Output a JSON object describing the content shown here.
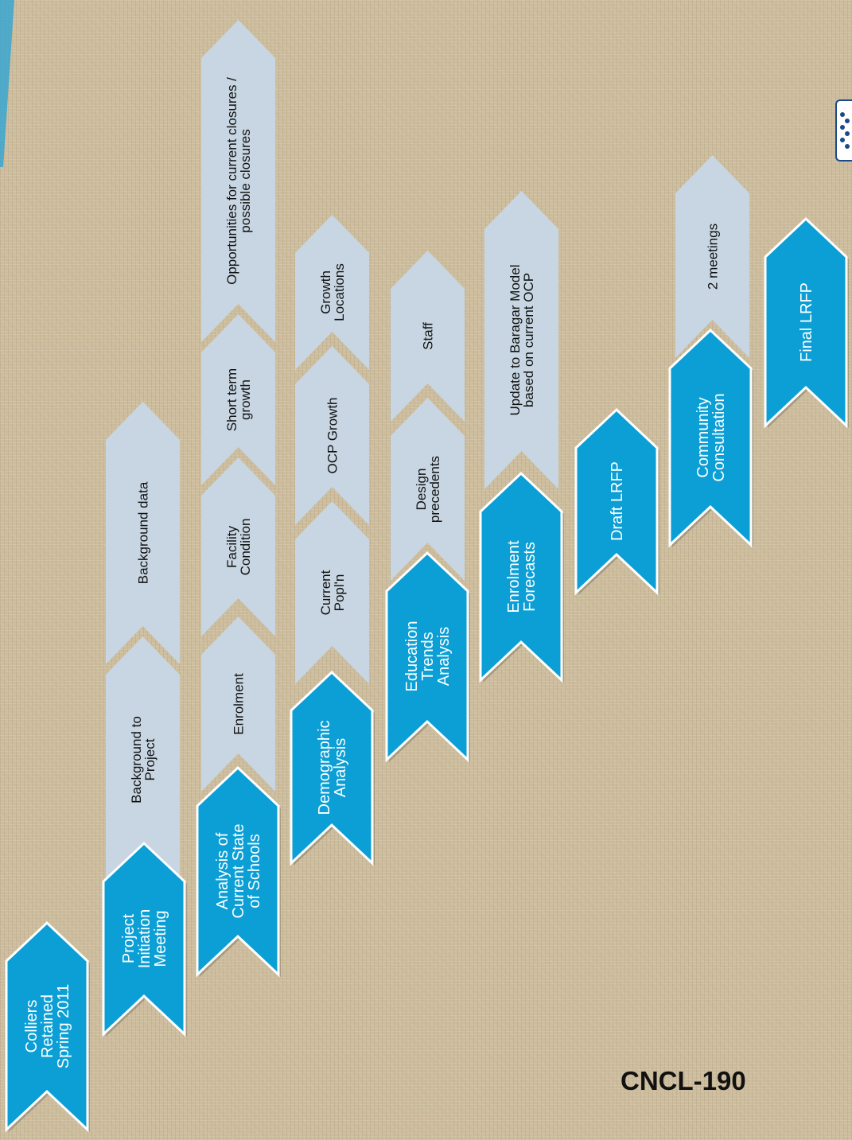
{
  "colors": {
    "background": "#ccbc9c",
    "milestone_fill": "#0b9fd6",
    "milestone_text": "#ffffff",
    "activity_fill": "#c7d6e2",
    "activity_text": "#111111",
    "outline": "#ffffff"
  },
  "milestones": [
    {
      "lines": [
        "Colliers",
        "Retained",
        "Spring 2011"
      ]
    },
    {
      "lines": [
        "Project",
        "Initiation",
        "Meeting"
      ]
    },
    {
      "lines": [
        "Analysis of",
        "Current State",
        "of Schools"
      ]
    },
    {
      "lines": [
        "Demographic",
        "Analysis"
      ]
    },
    {
      "lines": [
        "Education",
        "Trends",
        "Analysis"
      ]
    },
    {
      "lines": [
        "Enrolment",
        "Forecasts"
      ]
    },
    {
      "lines": [
        "Draft LRFP"
      ]
    },
    {
      "lines": [
        "Community",
        "Consultation"
      ]
    },
    {
      "lines": [
        "Final LRFP"
      ]
    }
  ],
  "activities": [
    {
      "lines": [
        "Background to",
        "Project"
      ]
    },
    {
      "lines": [
        "Background data"
      ]
    },
    {
      "lines": [
        "Enrolment"
      ]
    },
    {
      "lines": [
        "Facility",
        "Condition"
      ]
    },
    {
      "lines": [
        "Short term",
        "growth"
      ]
    },
    {
      "lines": [
        "Opportunities for current closures /",
        "possible closures"
      ]
    },
    {
      "lines": [
        "Current",
        "Popl'n"
      ]
    },
    {
      "lines": [
        "OCP Growth"
      ]
    },
    {
      "lines": [
        "Growth",
        "Locations"
      ]
    },
    {
      "lines": [
        "Design",
        "precedents"
      ]
    },
    {
      "lines": [
        "Staff"
      ]
    },
    {
      "lines": [
        "Update to Baragar Model",
        "based on current OCP"
      ]
    },
    {
      "lines": [
        "2 meetings"
      ]
    }
  ],
  "footer": {
    "code": "CNCL-190"
  },
  "logo": {
    "icon": "school-district-logo-icon"
  }
}
